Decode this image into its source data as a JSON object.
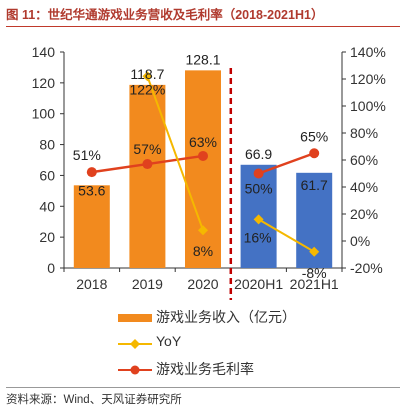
{
  "title": "图 11：世纪华通游戏业务营收及毛利率（2018-2021H1）",
  "source": "资料来源：Wind、天风证券研究所",
  "colors": {
    "bar_orange": "#f28a1e",
    "bar_blue": "#4472c4",
    "yoy_line": "#f5b800",
    "margin_line": "#e0411e",
    "divider": "#c00000"
  },
  "legend": {
    "revenue": "游戏业务收入（亿元）",
    "yoy": "YoY",
    "margin": "游戏业务毛利率"
  },
  "chart_data": {
    "type": "bar",
    "categories": [
      "2018",
      "2019",
      "2020",
      "2020H1",
      "2021H1"
    ],
    "series": [
      {
        "name": "游戏业务收入（亿元）",
        "kind": "bar",
        "axis": "left",
        "values": [
          53.6,
          118.7,
          128.1,
          66.9,
          61.7
        ],
        "labels": [
          "53.6",
          "118.7",
          "128.1",
          "66.9",
          "61.7"
        ]
      },
      {
        "name": "YoY",
        "kind": "line",
        "axis": "right",
        "values": [
          null,
          122,
          8,
          16,
          -8
        ],
        "labels": [
          "",
          "122%",
          "8%",
          "16%",
          "-8%"
        ]
      },
      {
        "name": "游戏业务毛利率",
        "kind": "line",
        "axis": "right",
        "values": [
          51,
          57,
          63,
          50,
          65
        ],
        "labels": [
          "51%",
          "57%",
          "63%",
          "50%",
          "65%"
        ]
      }
    ],
    "left_axis": {
      "min": 0,
      "max": 140,
      "ticks": [
        0,
        20,
        40,
        60,
        80,
        100,
        120,
        140
      ]
    },
    "right_axis": {
      "min": -20,
      "max": 140,
      "ticks": [
        "-20%",
        "0%",
        "20%",
        "40%",
        "60%",
        "80%",
        "100%",
        "120%",
        "140%"
      ]
    },
    "grid": false,
    "legend_position": "bottom"
  }
}
